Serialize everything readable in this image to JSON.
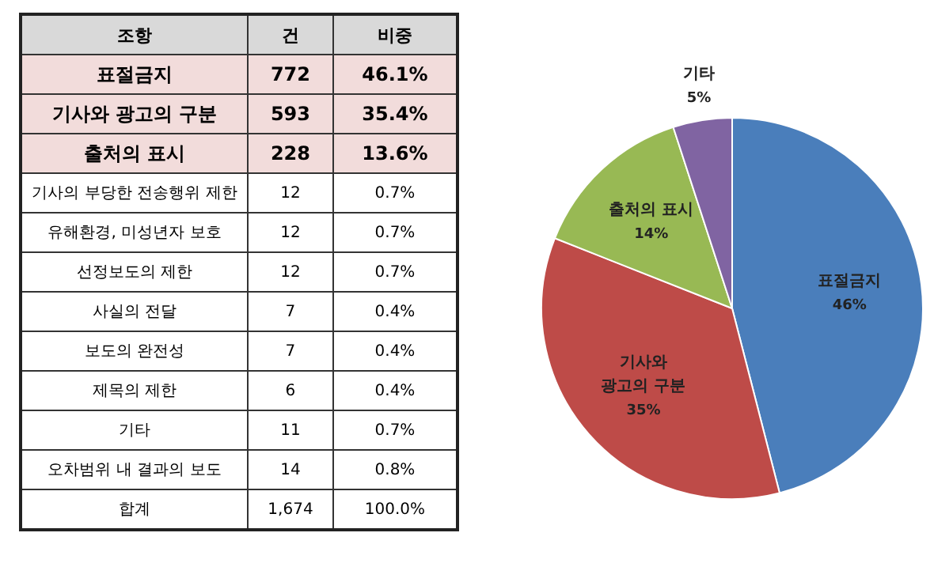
{
  "chart_data": [
    {
      "type": "other",
      "xlabel": "조항",
      "categories": [
        "표절금지",
        "기사와 광고의 구분",
        "출처의 표시",
        "기사의 부당한 전송행위 제한",
        "유해환경, 미성년자 보호",
        "선정보도의 제한",
        "사실의 전달",
        "보도의 완전성",
        "제목의 제한",
        "기타",
        "오차범위 내 결과의 보도",
        "합계"
      ],
      "colors": [
        "#f2dcdb",
        "#f2dcdb",
        "#f2dcdb",
        "#ffffff",
        "#ffffff",
        "#ffffff",
        "#ffffff",
        "#ffffff",
        "#ffffff",
        "#ffffff",
        "#ffffff",
        "#ffffff"
      ],
      "series": [
        {
          "name": "건",
          "values": [
            772,
            593,
            228,
            12,
            12,
            12,
            7,
            7,
            6,
            11,
            14,
            1674
          ],
          "value_labels": [
            "772",
            "593",
            "228",
            "12",
            "12",
            "12",
            "7",
            "7",
            "6",
            "11",
            "14",
            "1,674"
          ],
          "colors": [
            "#f2dcdb",
            "#f2dcdb",
            "#f2dcdb",
            "#ffffff",
            "#ffffff",
            "#ffffff",
            "#ffffff",
            "#ffffff",
            "#ffffff",
            "#ffffff",
            "#ffffff",
            "#ffffff"
          ]
        },
        {
          "name": "비중",
          "values": [
            46.1,
            35.4,
            13.6,
            0.7,
            0.7,
            0.7,
            0.4,
            0.4,
            0.4,
            0.7,
            0.8,
            100.0
          ],
          "value_labels": [
            "46.1%",
            "35.4%",
            "13.6%",
            "0.7%",
            "0.7%",
            "0.7%",
            "0.4%",
            "0.4%",
            "0.4%",
            "0.7%",
            "0.8%",
            "100.0%"
          ],
          "colors": [
            "#f2dcdb",
            "#f2dcdb",
            "#f2dcdb",
            "#ffffff",
            "#ffffff",
            "#ffffff",
            "#ffffff",
            "#ffffff",
            "#ffffff",
            "#ffffff",
            "#ffffff",
            "#ffffff"
          ]
        }
      ]
    },
    {
      "type": "pie",
      "categories": [
        "표절금지",
        "기사와 광고의 구분",
        "출처의 표시",
        "기타"
      ],
      "values": [
        46,
        35,
        14,
        5
      ],
      "colors": [
        "#4a7ebb",
        "#be4b48",
        "#98b954",
        "#8064a2"
      ],
      "data_labels": true,
      "value_labels": [
        "46%",
        "35%",
        "14%",
        "5%"
      ],
      "legend": false
    }
  ]
}
